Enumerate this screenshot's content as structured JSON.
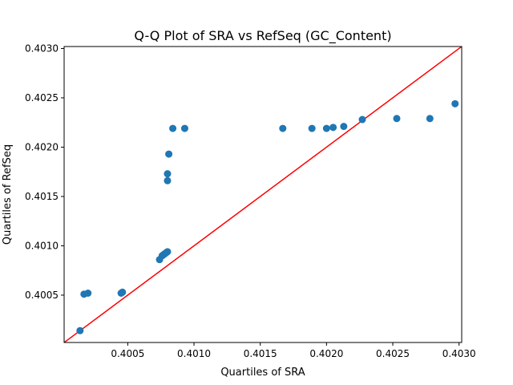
{
  "chart_data": {
    "type": "scatter",
    "title": "Q-Q Plot of SRA vs RefSeq (GC_Content)",
    "xlabel": "Quartiles of SRA",
    "ylabel": "Quartiles of RefSeq",
    "xlim": [
      0.40002,
      0.40302
    ],
    "ylim": [
      0.40002,
      0.40302
    ],
    "xticks": [
      "0.4005",
      "0.4010",
      "0.4015",
      "0.4020",
      "0.4025",
      "0.4030"
    ],
    "yticks": [
      "0.4005",
      "0.4010",
      "0.4015",
      "0.4020",
      "0.4025",
      "0.4030"
    ],
    "grid": false,
    "legend": "none",
    "marker_color": "#1f77b4",
    "reference_line_color": "#ff0000",
    "reference_line": {
      "type": "y=x",
      "from": [
        0.40002,
        0.40002
      ],
      "to": [
        0.40302,
        0.40302
      ]
    },
    "points": [
      {
        "x": 0.40014,
        "y": 0.40014
      },
      {
        "x": 0.40017,
        "y": 0.40051
      },
      {
        "x": 0.4002,
        "y": 0.40052
      },
      {
        "x": 0.40045,
        "y": 0.40052
      },
      {
        "x": 0.40046,
        "y": 0.40053
      },
      {
        "x": 0.40074,
        "y": 0.40086
      },
      {
        "x": 0.40076,
        "y": 0.4009
      },
      {
        "x": 0.40077,
        "y": 0.40091
      },
      {
        "x": 0.40078,
        "y": 0.40092
      },
      {
        "x": 0.40079,
        "y": 0.40093
      },
      {
        "x": 0.4008,
        "y": 0.40094
      },
      {
        "x": 0.4008,
        "y": 0.40166
      },
      {
        "x": 0.4008,
        "y": 0.40173
      },
      {
        "x": 0.40081,
        "y": 0.40193
      },
      {
        "x": 0.40084,
        "y": 0.40219
      },
      {
        "x": 0.40093,
        "y": 0.40219
      },
      {
        "x": 0.40167,
        "y": 0.40219
      },
      {
        "x": 0.40189,
        "y": 0.40219
      },
      {
        "x": 0.402,
        "y": 0.40219
      },
      {
        "x": 0.40205,
        "y": 0.4022
      },
      {
        "x": 0.40213,
        "y": 0.40221
      },
      {
        "x": 0.40227,
        "y": 0.40228
      },
      {
        "x": 0.40253,
        "y": 0.40229
      },
      {
        "x": 0.40278,
        "y": 0.40229
      },
      {
        "x": 0.40297,
        "y": 0.40244
      }
    ]
  }
}
